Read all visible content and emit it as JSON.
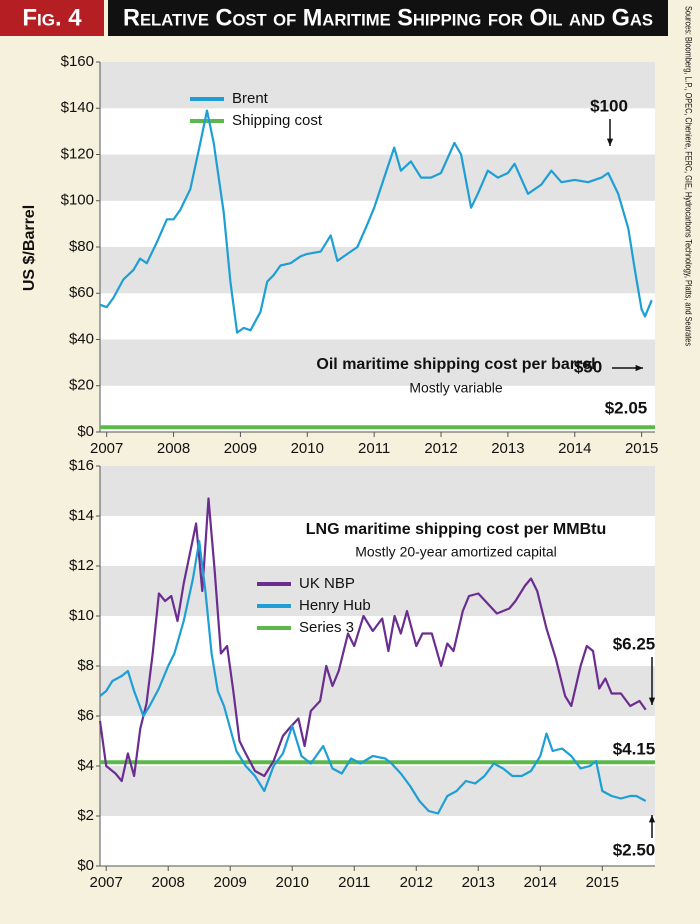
{
  "header": {
    "figure": "Fig. 4",
    "title": "Relative Cost of Maritime Shipping for Oil and Gas",
    "sources": "Sources: Bloomberg, L.P., OPEC, Cheniere, FERC, GIE, Hydrocarbons Technology, Platts, and Searates"
  },
  "chart_data": [
    {
      "type": "line",
      "title": "Oil maritime shipping cost per barrel",
      "subtitle": "Mostly variable",
      "ylabel": "US $/Barrel",
      "annotations": [
        "$100",
        "$50",
        "$2.05"
      ],
      "xlim": [
        2006.9,
        2015.2
      ],
      "xticks": [
        2007,
        2008,
        2009,
        2010,
        2011,
        2012,
        2013,
        2014,
        2015
      ],
      "ylim": [
        0,
        160
      ],
      "yticks": [
        {
          "value": 0,
          "label": "$0"
        },
        {
          "value": 20,
          "label": "$20"
        },
        {
          "value": 40,
          "label": "$40"
        },
        {
          "value": 60,
          "label": "$60"
        },
        {
          "value": 80,
          "label": "$80"
        },
        {
          "value": 100,
          "label": "$100"
        },
        {
          "value": 120,
          "label": "$120"
        },
        {
          "value": 140,
          "label": "$140"
        },
        {
          "value": 160,
          "label": "$160"
        }
      ],
      "grid": "bands",
      "legend": "upper-left",
      "series": [
        {
          "name": "Brent",
          "color": "#1d9fd6",
          "x": [
            2006.9,
            2007.0,
            2007.1,
            2007.25,
            2007.4,
            2007.5,
            2007.6,
            2007.75,
            2007.9,
            2008.0,
            2008.1,
            2008.25,
            2008.4,
            2008.5,
            2008.6,
            2008.75,
            2008.85,
            2008.95,
            2009.05,
            2009.15,
            2009.3,
            2009.4,
            2009.5,
            2009.6,
            2009.75,
            2009.9,
            2010.0,
            2010.2,
            2010.35,
            2010.45,
            2010.6,
            2010.75,
            2010.9,
            2011.0,
            2011.15,
            2011.3,
            2011.4,
            2011.55,
            2011.7,
            2011.85,
            2012.0,
            2012.2,
            2012.3,
            2012.45,
            2012.55,
            2012.7,
            2012.85,
            2013.0,
            2013.1,
            2013.3,
            2013.5,
            2013.65,
            2013.8,
            2014.0,
            2014.2,
            2014.4,
            2014.5,
            2014.65,
            2014.8,
            2014.9,
            2015.0,
            2015.05,
            2015.15
          ],
          "values": [
            55,
            54,
            58,
            66,
            70,
            75,
            73,
            82,
            92,
            92,
            96,
            105,
            125,
            139,
            125,
            95,
            65,
            43,
            45,
            44,
            52,
            65,
            68,
            72,
            73,
            76,
            77,
            78,
            85,
            74,
            77,
            80,
            90,
            97,
            110,
            123,
            113,
            117,
            110,
            110,
            112,
            125,
            120,
            97,
            103,
            113,
            110,
            112,
            116,
            103,
            107,
            113,
            108,
            109,
            108,
            110,
            112,
            103,
            88,
            70,
            53,
            50,
            57
          ]
        },
        {
          "name": "Shipping cost",
          "color": "#5cb84a",
          "x": [
            2006.9,
            2015.2
          ],
          "values": [
            2.05,
            2.05
          ]
        }
      ]
    },
    {
      "type": "line",
      "title": "LNG maritime shipping cost per MMBtu",
      "subtitle": "Mostly 20-year amortized capital",
      "annotations": [
        "$6.25",
        "$4.15",
        "$2.50"
      ],
      "xlim": [
        2006.9,
        2015.85
      ],
      "xticks": [
        2007,
        2008,
        2009,
        2010,
        2011,
        2012,
        2013,
        2014,
        2015
      ],
      "ylim": [
        0,
        16
      ],
      "yticks": [
        {
          "value": 0,
          "label": "$0"
        },
        {
          "value": 2,
          "label": "$2"
        },
        {
          "value": 4,
          "label": "$4"
        },
        {
          "value": 6,
          "label": "$6"
        },
        {
          "value": 8,
          "label": "$8"
        },
        {
          "value": 10,
          "label": "$10"
        },
        {
          "value": 12,
          "label": "$12"
        },
        {
          "value": 14,
          "label": "$14"
        },
        {
          "value": 16,
          "label": "$16"
        }
      ],
      "grid": "bands",
      "legend": "upper-left",
      "series": [
        {
          "name": "UK NBP",
          "color": "#6b2d8f",
          "x": [
            2006.9,
            2007.0,
            2007.05,
            2007.15,
            2007.25,
            2007.35,
            2007.45,
            2007.55,
            2007.65,
            2007.75,
            2007.85,
            2007.95,
            2008.05,
            2008.15,
            2008.25,
            2008.35,
            2008.45,
            2008.55,
            2008.65,
            2008.75,
            2008.85,
            2008.95,
            2009.05,
            2009.15,
            2009.25,
            2009.4,
            2009.55,
            2009.7,
            2009.85,
            2009.95,
            2010.1,
            2010.2,
            2010.3,
            2010.45,
            2010.55,
            2010.65,
            2010.75,
            2010.9,
            2011.0,
            2011.15,
            2011.3,
            2011.45,
            2011.55,
            2011.65,
            2011.75,
            2011.85,
            2012.0,
            2012.1,
            2012.25,
            2012.4,
            2012.5,
            2012.6,
            2012.75,
            2012.85,
            2013.0,
            2013.15,
            2013.3,
            2013.5,
            2013.6,
            2013.75,
            2013.85,
            2013.95,
            2014.1,
            2014.25,
            2014.4,
            2014.5,
            2014.65,
            2014.75,
            2014.85,
            2014.95,
            2015.05,
            2015.15,
            2015.3,
            2015.45,
            2015.6,
            2015.7
          ],
          "values": [
            5.8,
            4.0,
            3.9,
            3.7,
            3.4,
            4.5,
            3.6,
            5.5,
            6.5,
            8.5,
            10.9,
            10.6,
            10.8,
            9.8,
            11.3,
            12.5,
            13.7,
            11.0,
            14.7,
            11.8,
            8.5,
            8.8,
            7.0,
            5.0,
            4.5,
            3.8,
            3.6,
            4.2,
            5.2,
            5.5,
            5.9,
            4.8,
            6.2,
            6.6,
            8.0,
            7.2,
            7.8,
            9.3,
            8.8,
            10.0,
            9.4,
            9.9,
            8.6,
            10.0,
            9.3,
            10.2,
            8.8,
            9.3,
            9.3,
            8.0,
            8.9,
            8.6,
            10.2,
            10.8,
            10.9,
            10.5,
            10.1,
            10.3,
            10.6,
            11.2,
            11.5,
            11.0,
            9.5,
            8.3,
            6.8,
            6.4,
            8.0,
            8.8,
            8.6,
            7.1,
            7.5,
            6.9,
            6.9,
            6.4,
            6.6,
            6.25
          ]
        },
        {
          "name": "Henry Hub",
          "color": "#1d9fd6",
          "x": [
            2006.9,
            2007.0,
            2007.1,
            2007.25,
            2007.35,
            2007.45,
            2007.6,
            2007.7,
            2007.85,
            2008.0,
            2008.1,
            2008.25,
            2008.4,
            2008.5,
            2008.6,
            2008.7,
            2008.8,
            2008.9,
            2009.0,
            2009.1,
            2009.25,
            2009.4,
            2009.55,
            2009.7,
            2009.85,
            2010.0,
            2010.15,
            2010.3,
            2010.5,
            2010.65,
            2010.8,
            2010.95,
            2011.1,
            2011.3,
            2011.5,
            2011.6,
            2011.75,
            2011.9,
            2012.05,
            2012.2,
            2012.35,
            2012.5,
            2012.65,
            2012.8,
            2012.95,
            2013.1,
            2013.25,
            2013.4,
            2013.55,
            2013.7,
            2013.85,
            2014.0,
            2014.1,
            2014.2,
            2014.35,
            2014.5,
            2014.65,
            2014.8,
            2014.9,
            2015.0,
            2015.15,
            2015.3,
            2015.45,
            2015.55,
            2015.7
          ],
          "values": [
            6.8,
            7.0,
            7.4,
            7.6,
            7.8,
            7.0,
            6.0,
            6.4,
            7.1,
            8.0,
            8.5,
            9.8,
            11.5,
            13.0,
            11.0,
            8.5,
            7.0,
            6.4,
            5.5,
            4.6,
            4.0,
            3.6,
            3.0,
            4.0,
            4.5,
            5.6,
            4.4,
            4.1,
            4.8,
            3.9,
            3.7,
            4.3,
            4.1,
            4.4,
            4.3,
            4.1,
            3.7,
            3.2,
            2.6,
            2.2,
            2.1,
            2.8,
            3.0,
            3.4,
            3.3,
            3.6,
            4.1,
            3.9,
            3.6,
            3.6,
            3.8,
            4.4,
            5.3,
            4.6,
            4.7,
            4.4,
            3.9,
            4.0,
            4.2,
            3.0,
            2.8,
            2.7,
            2.8,
            2.8,
            2.6
          ]
        },
        {
          "name": "Series 3",
          "color": "#5cb84a",
          "x": [
            2006.9,
            2015.85
          ],
          "values": [
            4.15,
            4.15
          ]
        }
      ]
    }
  ]
}
